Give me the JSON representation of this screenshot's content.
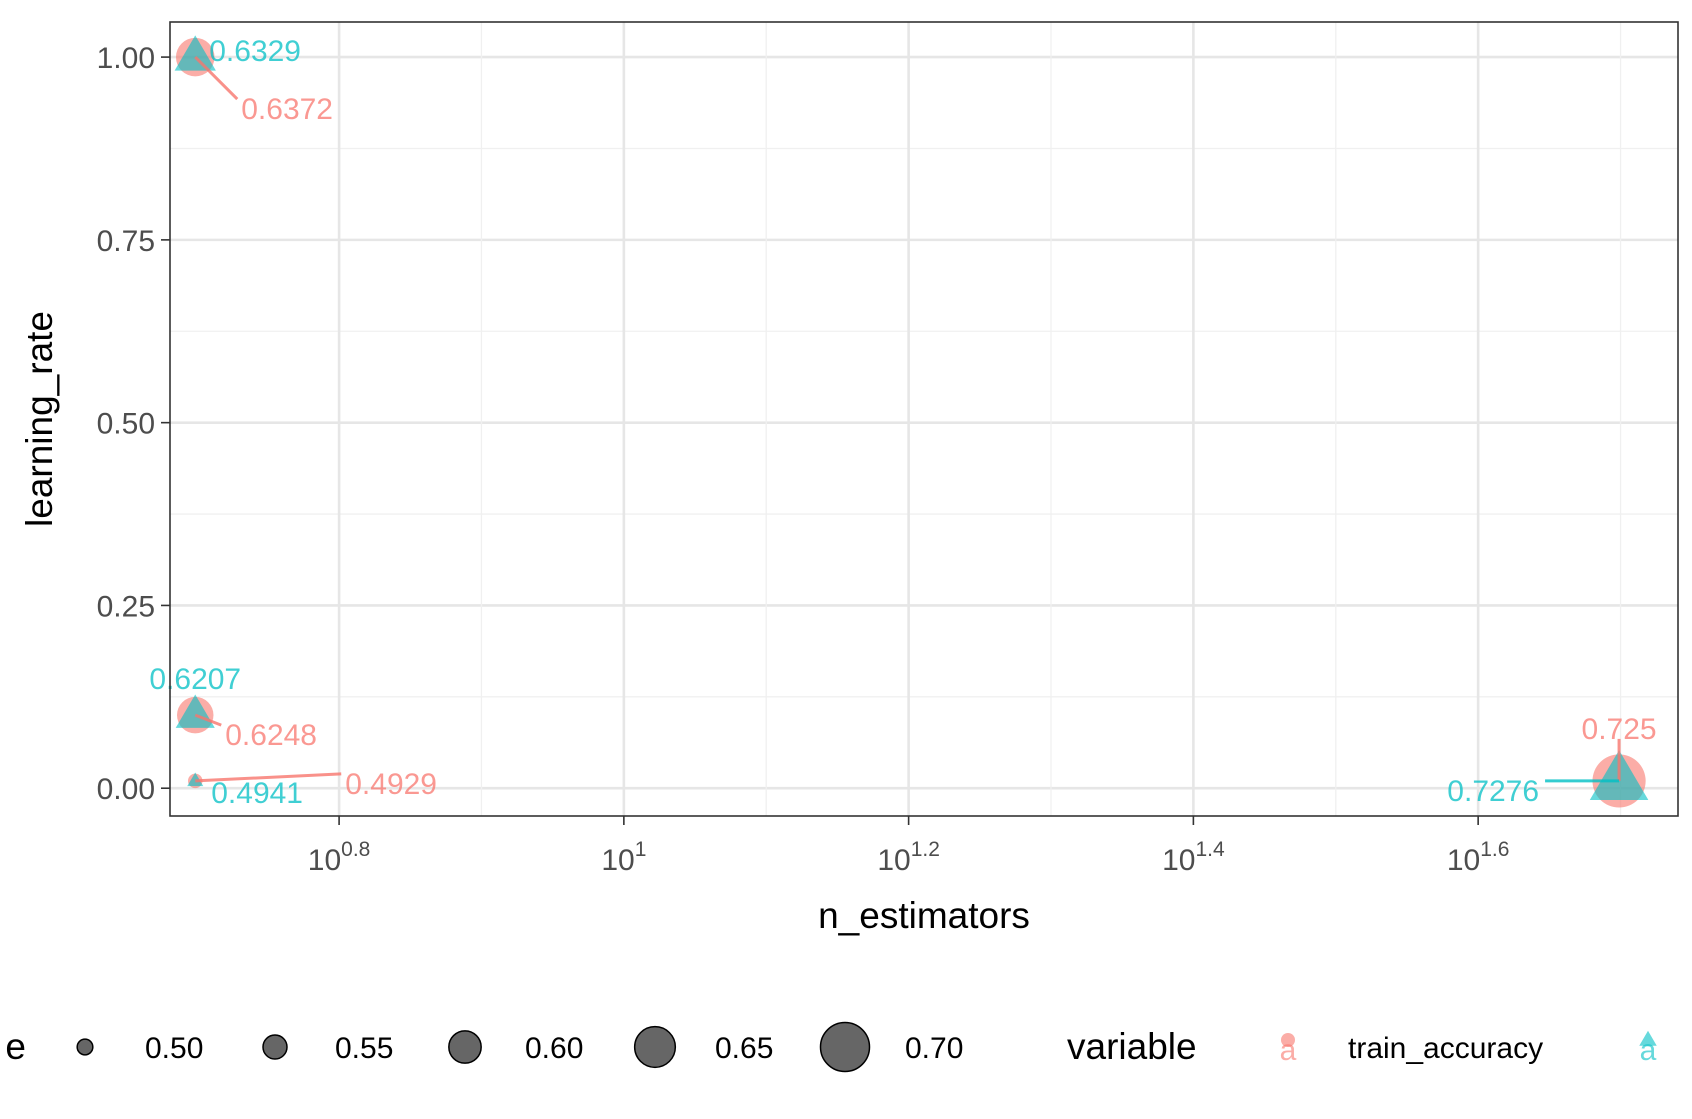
{
  "chart_data": {
    "type": "scatter",
    "xlabel": "n_estimators",
    "ylabel": "learning_rate",
    "x_scale": "log10",
    "x_ticks": [
      {
        "exp": "0.8",
        "value": 6.3096
      },
      {
        "exp": "1",
        "value": 10
      },
      {
        "exp": "1.2",
        "value": 15.8489
      },
      {
        "exp": "1.4",
        "value": 25.1189
      },
      {
        "exp": "1.6",
        "value": 39.8107
      }
    ],
    "x_tick_base": "10",
    "xlim": [
      4.8,
      55
    ],
    "y_ticks": [
      "0.00",
      "0.25",
      "0.50",
      "0.75",
      "1.00"
    ],
    "ylim": [
      -0.038,
      1.048
    ],
    "grid": true,
    "legend_position": "bottom",
    "size_legend": {
      "title": "value",
      "visible_title": "e",
      "entries": [
        "0.50",
        "0.55",
        "0.60",
        "0.65",
        "0.70"
      ]
    },
    "color_legend": {
      "title": "variable",
      "entries": [
        {
          "label": "train_accuracy",
          "color": "#F8766D",
          "shape": "circle",
          "key_glyph": "a"
        },
        {
          "label": "",
          "color": "#00BFC4",
          "shape": "triangle",
          "key_glyph": "a"
        }
      ]
    },
    "series": [
      {
        "name": "train_accuracy",
        "color": "#F8766D",
        "shape": "circle",
        "points": [
          {
            "x": 5,
            "y": 1.0,
            "value": 0.6372,
            "label": "0.6372"
          },
          {
            "x": 5,
            "y": 0.1,
            "value": 0.6248,
            "label": "0.6248"
          },
          {
            "x": 5,
            "y": 0.01,
            "value": 0.4929,
            "label": "0.4929"
          },
          {
            "x": 50,
            "y": 0.01,
            "value": 0.725,
            "label": "0.725"
          }
        ]
      },
      {
        "color": "#00BFC4",
        "shape": "triangle",
        "points": [
          {
            "x": 5,
            "y": 1.0,
            "value": 0.6329,
            "label": "0.6329"
          },
          {
            "x": 5,
            "y": 0.1,
            "value": 0.6207,
            "label": "0.6207"
          },
          {
            "x": 5,
            "y": 0.01,
            "value": 0.4941,
            "label": "0.4941"
          },
          {
            "x": 50,
            "y": 0.01,
            "value": 0.7276,
            "label": "0.7276"
          }
        ]
      }
    ]
  }
}
